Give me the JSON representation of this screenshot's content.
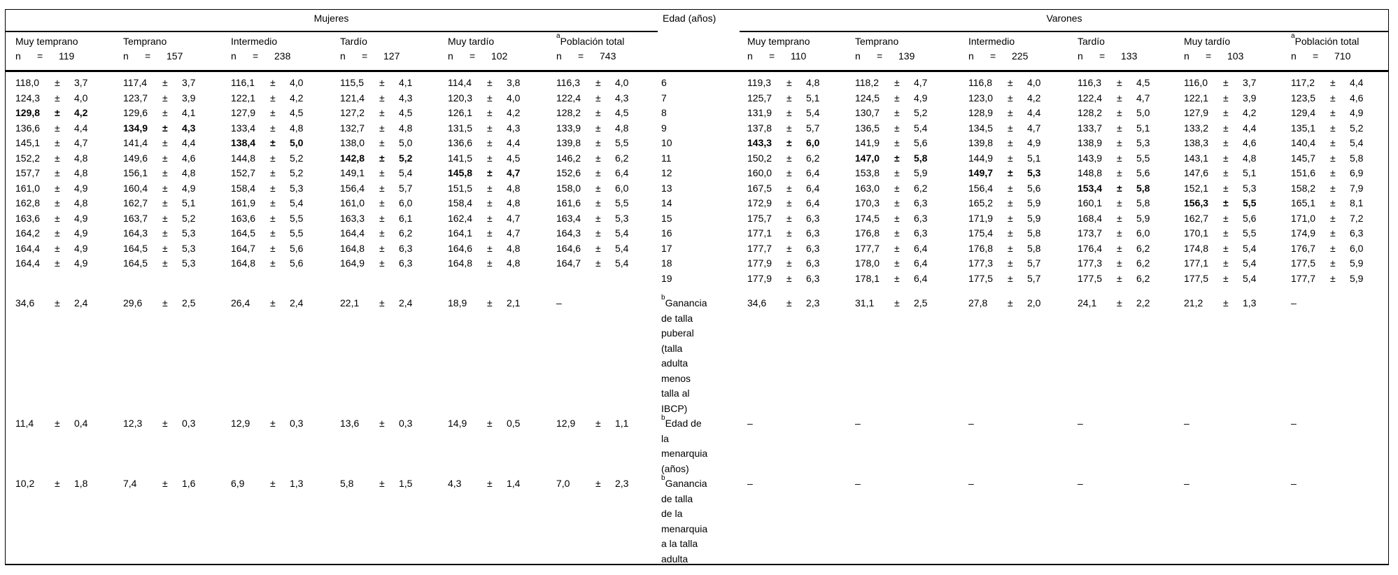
{
  "table": {
    "group_headers": {
      "mujeres": "Mujeres",
      "edad": "Edad (años)",
      "varones": "Varones"
    },
    "n_prefix": "n",
    "equals_sign": "=",
    "plus_minus": "±",
    "dash": "–",
    "mujeres_columns": [
      {
        "label": "Muy temprano",
        "n": "119"
      },
      {
        "label": "Temprano",
        "n": "157"
      },
      {
        "label": "Intermedio",
        "n": "238"
      },
      {
        "label": "Tardío",
        "n": "127"
      },
      {
        "label": "Muy tardío",
        "n": "102"
      },
      {
        "sup": "a",
        "label": "Población total",
        "n": "743"
      }
    ],
    "varones_columns": [
      {
        "label": "Muy temprano",
        "n": "110"
      },
      {
        "label": "Temprano",
        "n": "139"
      },
      {
        "label": "Intermedio",
        "n": "225"
      },
      {
        "label": "Tardío",
        "n": "133"
      },
      {
        "label": "Muy tardío",
        "n": "103"
      },
      {
        "sup": "a",
        "label": "Población total",
        "n": "710"
      }
    ],
    "age_rows": [
      {
        "age": "6",
        "m": [
          [
            "118,0",
            "3,7"
          ],
          [
            "117,4",
            "3,7"
          ],
          [
            "116,1",
            "4,0"
          ],
          [
            "115,5",
            "4,1"
          ],
          [
            "114,4",
            "3,8"
          ],
          [
            "116,3",
            "4,0"
          ]
        ],
        "v": [
          [
            "119,3",
            "4,8"
          ],
          [
            "118,2",
            "4,7"
          ],
          [
            "116,8",
            "4,0"
          ],
          [
            "116,3",
            "4,5"
          ],
          [
            "116,0",
            "3,7"
          ],
          [
            "117,2",
            "4,4"
          ]
        ]
      },
      {
        "age": "7",
        "m": [
          [
            "124,3",
            "4,0"
          ],
          [
            "123,7",
            "3,9"
          ],
          [
            "122,1",
            "4,2"
          ],
          [
            "121,4",
            "4,3"
          ],
          [
            "120,3",
            "4,0"
          ],
          [
            "122,4",
            "4,3"
          ]
        ],
        "v": [
          [
            "125,7",
            "5,1"
          ],
          [
            "124,5",
            "4,9"
          ],
          [
            "123,0",
            "4,2"
          ],
          [
            "122,4",
            "4,7"
          ],
          [
            "122,1",
            "3,9"
          ],
          [
            "123,5",
            "4,6"
          ]
        ]
      },
      {
        "age": "8",
        "m": [
          [
            "129,8",
            "4,2",
            1
          ],
          [
            "129,6",
            "4,1"
          ],
          [
            "127,9",
            "4,5"
          ],
          [
            "127,2",
            "4,5"
          ],
          [
            "126,1",
            "4,2"
          ],
          [
            "128,2",
            "4,5"
          ]
        ],
        "v": [
          [
            "131,9",
            "5,4"
          ],
          [
            "130,7",
            "5,2"
          ],
          [
            "128,9",
            "4,4"
          ],
          [
            "128,2",
            "5,0"
          ],
          [
            "127,9",
            "4,2"
          ],
          [
            "129,4",
            "4,9"
          ]
        ]
      },
      {
        "age": "9",
        "m": [
          [
            "136,6",
            "4,4"
          ],
          [
            "134,9",
            "4,3",
            1
          ],
          [
            "133,4",
            "4,8"
          ],
          [
            "132,7",
            "4,8"
          ],
          [
            "131,5",
            "4,3"
          ],
          [
            "133,9",
            "4,8"
          ]
        ],
        "v": [
          [
            "137,8",
            "5,7"
          ],
          [
            "136,5",
            "5,4"
          ],
          [
            "134,5",
            "4,7"
          ],
          [
            "133,7",
            "5,1"
          ],
          [
            "133,2",
            "4,4"
          ],
          [
            "135,1",
            "5,2"
          ]
        ]
      },
      {
        "age": "10",
        "m": [
          [
            "145,1",
            "4,7"
          ],
          [
            "141,4",
            "4,4"
          ],
          [
            "138,4",
            "5,0",
            1
          ],
          [
            "138,0",
            "5,0"
          ],
          [
            "136,6",
            "4,4"
          ],
          [
            "139,8",
            "5,5"
          ]
        ],
        "v": [
          [
            "143,3",
            "6,0",
            1
          ],
          [
            "141,9",
            "5,6"
          ],
          [
            "139,8",
            "4,9"
          ],
          [
            "138,9",
            "5,3"
          ],
          [
            "138,3",
            "4,6"
          ],
          [
            "140,4",
            "5,4"
          ]
        ]
      },
      {
        "age": "11",
        "m": [
          [
            "152,2",
            "4,8"
          ],
          [
            "149,6",
            "4,6"
          ],
          [
            "144,8",
            "5,2"
          ],
          [
            "142,8",
            "5,2",
            1
          ],
          [
            "141,5",
            "4,5"
          ],
          [
            "146,2",
            "6,2"
          ]
        ],
        "v": [
          [
            "150,2",
            "6,2"
          ],
          [
            "147,0",
            "5,8",
            1
          ],
          [
            "144,9",
            "5,1"
          ],
          [
            "143,9",
            "5,5"
          ],
          [
            "143,1",
            "4,8"
          ],
          [
            "145,7",
            "5,8"
          ]
        ]
      },
      {
        "age": "12",
        "m": [
          [
            "157,7",
            "4,8"
          ],
          [
            "156,1",
            "4,8"
          ],
          [
            "152,7",
            "5,2"
          ],
          [
            "149,1",
            "5,4"
          ],
          [
            "145,8",
            "4,7",
            1
          ],
          [
            "152,6",
            "6,4"
          ]
        ],
        "v": [
          [
            "160,0",
            "6,4"
          ],
          [
            "153,8",
            "5,9"
          ],
          [
            "149,7",
            "5,3",
            1
          ],
          [
            "148,8",
            "5,6"
          ],
          [
            "147,6",
            "5,1"
          ],
          [
            "151,6",
            "6,9"
          ]
        ]
      },
      {
        "age": "13",
        "m": [
          [
            "161,0",
            "4,9"
          ],
          [
            "160,4",
            "4,9"
          ],
          [
            "158,4",
            "5,3"
          ],
          [
            "156,4",
            "5,7"
          ],
          [
            "151,5",
            "4,8"
          ],
          [
            "158,0",
            "6,0"
          ]
        ],
        "v": [
          [
            "167,5",
            "6,4"
          ],
          [
            "163,0",
            "6,2"
          ],
          [
            "156,4",
            "5,6"
          ],
          [
            "153,4",
            "5,8",
            1
          ],
          [
            "152,1",
            "5,3"
          ],
          [
            "158,2",
            "7,9"
          ]
        ]
      },
      {
        "age": "14",
        "m": [
          [
            "162,8",
            "4,8"
          ],
          [
            "162,7",
            "5,1"
          ],
          [
            "161,9",
            "5,4"
          ],
          [
            "161,0",
            "6,0"
          ],
          [
            "158,4",
            "4,8"
          ],
          [
            "161,6",
            "5,5"
          ]
        ],
        "v": [
          [
            "172,9",
            "6,4"
          ],
          [
            "170,3",
            "6,3"
          ],
          [
            "165,2",
            "5,9"
          ],
          [
            "160,1",
            "5,8"
          ],
          [
            "156,3",
            "5,5",
            1
          ],
          [
            "165,1",
            "8,1"
          ]
        ]
      },
      {
        "age": "15",
        "m": [
          [
            "163,6",
            "4,9"
          ],
          [
            "163,7",
            "5,2"
          ],
          [
            "163,6",
            "5,5"
          ],
          [
            "163,3",
            "6,1"
          ],
          [
            "162,4",
            "4,7"
          ],
          [
            "163,4",
            "5,3"
          ]
        ],
        "v": [
          [
            "175,7",
            "6,3"
          ],
          [
            "174,5",
            "6,3"
          ],
          [
            "171,9",
            "5,9"
          ],
          [
            "168,4",
            "5,9"
          ],
          [
            "162,7",
            "5,6"
          ],
          [
            "171,0",
            "7,2"
          ]
        ]
      },
      {
        "age": "16",
        "m": [
          [
            "164,2",
            "4,9"
          ],
          [
            "164,3",
            "5,3"
          ],
          [
            "164,5",
            "5,5"
          ],
          [
            "164,4",
            "6,2"
          ],
          [
            "164,1",
            "4,7"
          ],
          [
            "164,3",
            "5,4"
          ]
        ],
        "v": [
          [
            "177,1",
            "6,3"
          ],
          [
            "176,8",
            "6,3"
          ],
          [
            "175,4",
            "5,8"
          ],
          [
            "173,7",
            "6,0"
          ],
          [
            "170,1",
            "5,5"
          ],
          [
            "174,9",
            "6,3"
          ]
        ]
      },
      {
        "age": "17",
        "m": [
          [
            "164,4",
            "4,9"
          ],
          [
            "164,5",
            "5,3"
          ],
          [
            "164,7",
            "5,6"
          ],
          [
            "164,8",
            "6,3"
          ],
          [
            "164,6",
            "4,8"
          ],
          [
            "164,6",
            "5,4"
          ]
        ],
        "v": [
          [
            "177,7",
            "6,3"
          ],
          [
            "177,7",
            "6,4"
          ],
          [
            "176,8",
            "5,8"
          ],
          [
            "176,4",
            "6,2"
          ],
          [
            "174,8",
            "5,4"
          ],
          [
            "176,7",
            "6,0"
          ]
        ]
      },
      {
        "age": "18",
        "m": [
          [
            "164,4",
            "4,9"
          ],
          [
            "164,5",
            "5,3"
          ],
          [
            "164,8",
            "5,6"
          ],
          [
            "164,9",
            "6,3"
          ],
          [
            "164,8",
            "4,8"
          ],
          [
            "164,7",
            "5,4"
          ]
        ],
        "v": [
          [
            "177,9",
            "6,3"
          ],
          [
            "178,0",
            "6,4"
          ],
          [
            "177,3",
            "5,7"
          ],
          [
            "177,3",
            "6,2"
          ],
          [
            "177,1",
            "5,4"
          ],
          [
            "177,5",
            "5,9"
          ]
        ]
      },
      {
        "age": "19",
        "m": [
          null,
          null,
          null,
          null,
          null,
          null
        ],
        "v": [
          [
            "177,9",
            "6,3"
          ],
          [
            "178,1",
            "6,4"
          ],
          [
            "177,5",
            "5,7"
          ],
          [
            "177,5",
            "6,2"
          ],
          [
            "177,5",
            "5,4"
          ],
          [
            "177,7",
            "5,9"
          ]
        ]
      }
    ],
    "extra_rows": [
      {
        "sup": "b",
        "label": "Ganancia de talla puberal (talla adulta menos talla al IBCP)",
        "m": [
          [
            "34,6",
            "2,4"
          ],
          [
            "29,6",
            "2,5"
          ],
          [
            "26,4",
            "2,4"
          ],
          [
            "22,1",
            "2,4"
          ],
          [
            "18,9",
            "2,1"
          ],
          "–"
        ],
        "v": [
          [
            "34,6",
            "2,3"
          ],
          [
            "31,1",
            "2,5"
          ],
          [
            "27,8",
            "2,0"
          ],
          [
            "24,1",
            "2,2"
          ],
          [
            "21,2",
            "1,3"
          ],
          "–"
        ]
      },
      {
        "sup": "b",
        "label": "Edad de la menarquia (años)",
        "m": [
          [
            "11,4",
            "0,4"
          ],
          [
            "12,3",
            "0,3"
          ],
          [
            "12,9",
            "0,3"
          ],
          [
            "13,6",
            "0,3"
          ],
          [
            "14,9",
            "0,5"
          ],
          [
            "12,9",
            "1,1"
          ]
        ],
        "v": [
          "–",
          "–",
          "–",
          "–",
          "–",
          "–"
        ]
      },
      {
        "sup": "b",
        "label": "Ganancia de talla de la menarquia a la talla adulta",
        "m": [
          [
            "10,2",
            "1,8"
          ],
          [
            "7,4",
            "1,6"
          ],
          [
            "6,9",
            "1,3"
          ],
          [
            "5,8",
            "1,5"
          ],
          [
            "4,3",
            "1,4"
          ],
          [
            "7,0",
            "2,3"
          ]
        ],
        "v": [
          "–",
          "–",
          "–",
          "–",
          "–",
          "–"
        ]
      }
    ]
  }
}
